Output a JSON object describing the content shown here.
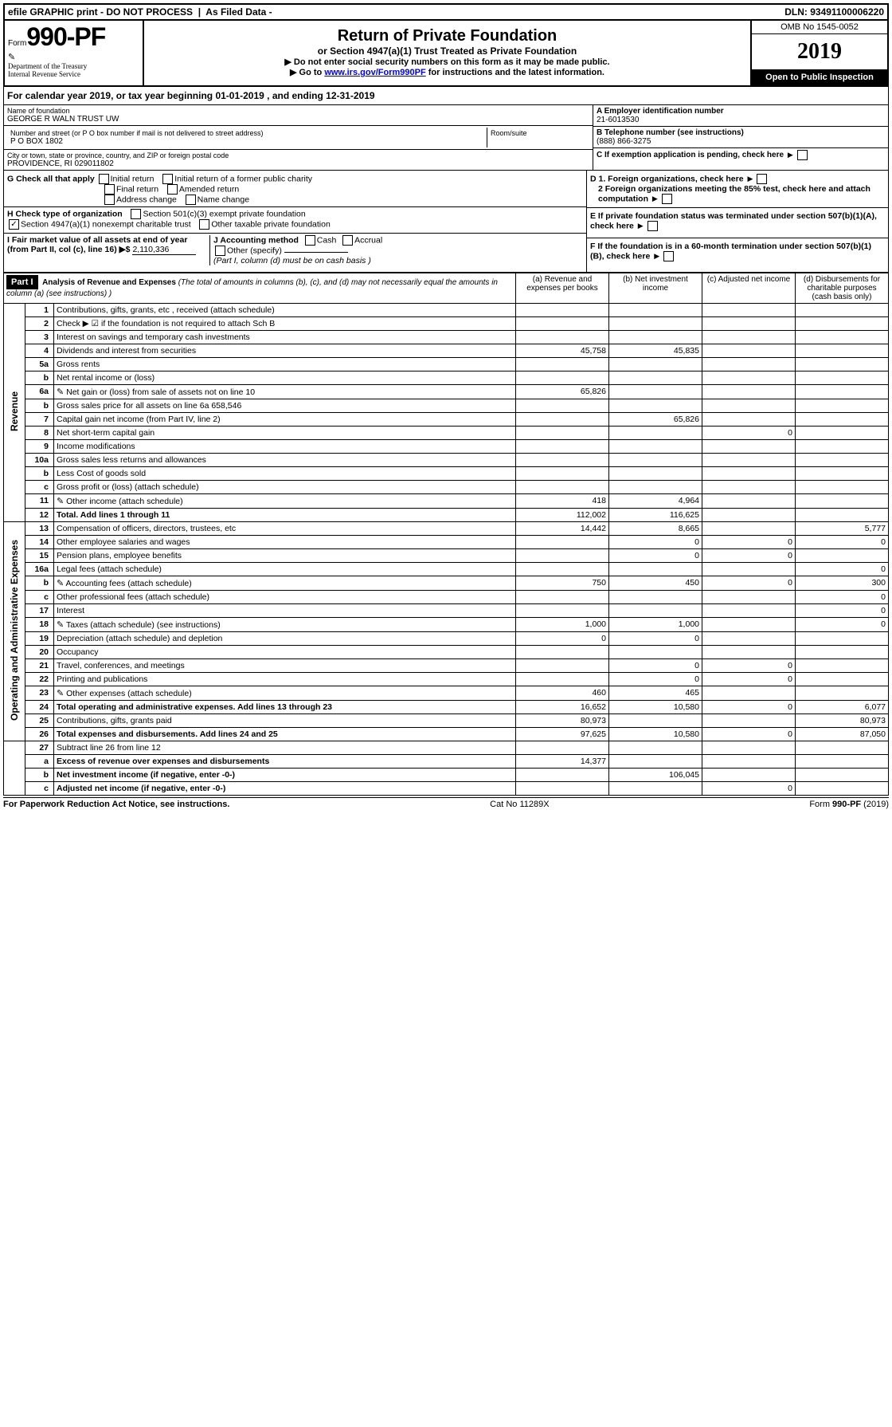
{
  "topbar": {
    "efile": "efile GRAPHIC print - DO NOT PROCESS",
    "asfiled": "As Filed Data -",
    "dln": "DLN: 93491100006220"
  },
  "header": {
    "form_prefix": "Form",
    "form_no": "990-PF",
    "dept": "Department of the Treasury",
    "irs": "Internal Revenue Service",
    "title": "Return of Private Foundation",
    "subtitle": "or Section 4947(a)(1) Trust Treated as Private Foundation",
    "note1": "▶ Do not enter social security numbers on this form as it may be made public.",
    "note2_pre": "▶ Go to ",
    "note2_link": "www.irs.gov/Form990PF",
    "note2_post": " for instructions and the latest information.",
    "omb": "OMB No 1545-0052",
    "year": "2019",
    "badge": "Open to Public Inspection"
  },
  "calyear": "For calendar year 2019, or tax year beginning 01-01-2019              , and ending 12-31-2019",
  "foundation": {
    "name_lbl": "Name of foundation",
    "name": "GEORGE R WALN TRUST UW",
    "addr_lbl": "Number and street (or P O  box number if mail is not delivered to street address)",
    "addr": "P O BOX 1802",
    "room_lbl": "Room/suite",
    "city_lbl": "City or town, state or province, country, and ZIP or foreign postal code",
    "city": "PROVIDENCE, RI  029011802",
    "ein_lbl": "A Employer identification number",
    "ein": "21-6013530",
    "tel_lbl": "B Telephone number (see instructions)",
    "tel": "(888) 866-3275",
    "c_lbl": "C If exemption application is pending, check here"
  },
  "sectionG": {
    "lbl": "G Check all that apply",
    "opts": [
      "Initial return",
      "Initial return of a former public charity",
      "Final return",
      "Amended return",
      "Address change",
      "Name change"
    ]
  },
  "sectionH": {
    "lbl": "H Check type of organization",
    "opt1": "Section 501(c)(3) exempt private foundation",
    "opt2": "Section 4947(a)(1) nonexempt charitable trust",
    "opt3": "Other taxable private foundation"
  },
  "sectionI": {
    "lbl": "I Fair market value of all assets at end of year (from Part II, col  (c), line 16) ▶$",
    "val": "2,110,336"
  },
  "sectionJ": {
    "lbl": "J Accounting method",
    "cash": "Cash",
    "accrual": "Accrual",
    "other": "Other (specify)",
    "note": "(Part I, column (d) must be on cash basis )"
  },
  "sectionD": {
    "d1": "D 1. Foreign organizations, check here",
    "d2": "2 Foreign organizations meeting the 85% test, check here and attach computation",
    "e": "E  If private foundation status was terminated under section 507(b)(1)(A), check here",
    "f": "F  If the foundation is in a 60-month termination under section 507(b)(1)(B), check here"
  },
  "part1": {
    "label": "Part I",
    "title": "Analysis of Revenue and Expenses",
    "title_note": "(The total of amounts in columns (b), (c), and (d) may not necessarily equal the amounts in column (a) (see instructions) )",
    "col_a": "(a) Revenue and expenses per books",
    "col_b": "(b) Net investment income",
    "col_c": "(c) Adjusted net income",
    "col_d": "(d) Disbursements for charitable purposes (cash basis only)"
  },
  "side_labels": {
    "revenue": "Revenue",
    "expenses": "Operating and Administrative Expenses"
  },
  "rows": {
    "r1": {
      "n": "1",
      "d": "Contributions, gifts, grants, etc , received (attach schedule)"
    },
    "r2": {
      "n": "2",
      "d": "Check ▶ ☑ if the foundation is not required to attach Sch B"
    },
    "r3": {
      "n": "3",
      "d": "Interest on savings and temporary cash investments"
    },
    "r4": {
      "n": "4",
      "d": "Dividends and interest from securities",
      "a": "45,758",
      "b": "45,835"
    },
    "r5a": {
      "n": "5a",
      "d": "Gross rents"
    },
    "r5b": {
      "n": "b",
      "d": "Net rental income or (loss)"
    },
    "r6a": {
      "n": "6a",
      "d": "Net gain or (loss) from sale of assets not on line 10",
      "a": "65,826",
      "icon": "✎"
    },
    "r6b": {
      "n": "b",
      "d": "Gross sales price for all assets on line 6a          658,546"
    },
    "r7": {
      "n": "7",
      "d": "Capital gain net income (from Part IV, line 2)",
      "b": "65,826"
    },
    "r8": {
      "n": "8",
      "d": "Net short-term capital gain",
      "c": "0"
    },
    "r9": {
      "n": "9",
      "d": "Income modifications"
    },
    "r10a": {
      "n": "10a",
      "d": "Gross sales less returns and allowances"
    },
    "r10b": {
      "n": "b",
      "d": "Less  Cost of goods sold"
    },
    "r10c": {
      "n": "c",
      "d": "Gross profit or (loss) (attach schedule)"
    },
    "r11": {
      "n": "11",
      "d": "Other income (attach schedule)",
      "a": "418",
      "b": "4,964",
      "icon": "✎"
    },
    "r12": {
      "n": "12",
      "d": "Total. Add lines 1 through 11",
      "a": "112,002",
      "b": "116,625",
      "bold": true
    },
    "r13": {
      "n": "13",
      "d": "Compensation of officers, directors, trustees, etc",
      "a": "14,442",
      "b": "8,665",
      "d2": "5,777"
    },
    "r14": {
      "n": "14",
      "d": "Other employee salaries and wages",
      "b": "0",
      "c": "0",
      "d2": "0"
    },
    "r15": {
      "n": "15",
      "d": "Pension plans, employee benefits",
      "b": "0",
      "c": "0"
    },
    "r16a": {
      "n": "16a",
      "d": "Legal fees (attach schedule)",
      "d2": "0"
    },
    "r16b": {
      "n": "b",
      "d": "Accounting fees (attach schedule)",
      "a": "750",
      "b": "450",
      "c": "0",
      "d2": "300",
      "icon": "✎"
    },
    "r16c": {
      "n": "c",
      "d": "Other professional fees (attach schedule)",
      "d2": "0"
    },
    "r17": {
      "n": "17",
      "d": "Interest",
      "d2": "0"
    },
    "r18": {
      "n": "18",
      "d": "Taxes (attach schedule) (see instructions)",
      "a": "1,000",
      "b": "1,000",
      "d2": "0",
      "icon": "✎"
    },
    "r19": {
      "n": "19",
      "d": "Depreciation (attach schedule) and depletion",
      "a": "0",
      "b": "0"
    },
    "r20": {
      "n": "20",
      "d": "Occupancy"
    },
    "r21": {
      "n": "21",
      "d": "Travel, conferences, and meetings",
      "b": "0",
      "c": "0"
    },
    "r22": {
      "n": "22",
      "d": "Printing and publications",
      "b": "0",
      "c": "0"
    },
    "r23": {
      "n": "23",
      "d": "Other expenses (attach schedule)",
      "a": "460",
      "b": "465",
      "icon": "✎"
    },
    "r24": {
      "n": "24",
      "d": "Total operating and administrative expenses. Add lines 13 through 23",
      "a": "16,652",
      "b": "10,580",
      "c": "0",
      "d2": "6,077",
      "bold": true
    },
    "r25": {
      "n": "25",
      "d": "Contributions, gifts, grants paid",
      "a": "80,973",
      "d2": "80,973"
    },
    "r26": {
      "n": "26",
      "d": "Total expenses and disbursements. Add lines 24 and 25",
      "a": "97,625",
      "b": "10,580",
      "c": "0",
      "d2": "87,050",
      "bold": true
    },
    "r27": {
      "n": "27",
      "d": "Subtract line 26 from line 12"
    },
    "r27a": {
      "n": "a",
      "d": "Excess of revenue over expenses and disbursements",
      "a": "14,377",
      "bold": true
    },
    "r27b": {
      "n": "b",
      "d": "Net investment income (if negative, enter -0-)",
      "b": "106,045",
      "bold": true
    },
    "r27c": {
      "n": "c",
      "d": "Adjusted net income (if negative, enter -0-)",
      "c": "0",
      "bold": true
    }
  },
  "footer": {
    "left": "For Paperwork Reduction Act Notice, see instructions.",
    "mid": "Cat No 11289X",
    "right": "Form 990-PF (2019)"
  }
}
